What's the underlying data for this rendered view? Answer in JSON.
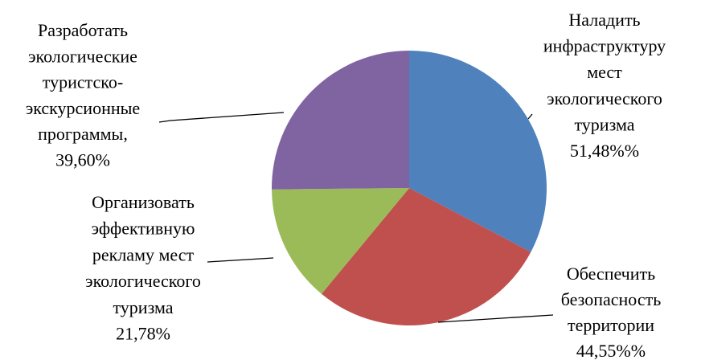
{
  "chart_data": {
    "type": "pie",
    "categories": [
      [
        "Наладить",
        "инфраструктуру",
        "мест",
        "экологического",
        "туризма"
      ],
      [
        "Обеспечить",
        "безопасность",
        "территории"
      ],
      [
        "Организовать",
        "эффективную",
        "рекламу мест",
        "экологического",
        "туризма"
      ],
      [
        "Разработать",
        "экологические",
        "туристско-",
        "экскурсионные",
        "программы,"
      ]
    ],
    "values": [
      51.48,
      44.55,
      21.78,
      39.6
    ],
    "value_labels": [
      "51,48%%",
      "44,55%%",
      "21,78%",
      "39,60%"
    ],
    "colors": [
      "#4f81bd",
      "#c0504d",
      "#9bbb59",
      "#8064a2"
    ]
  }
}
